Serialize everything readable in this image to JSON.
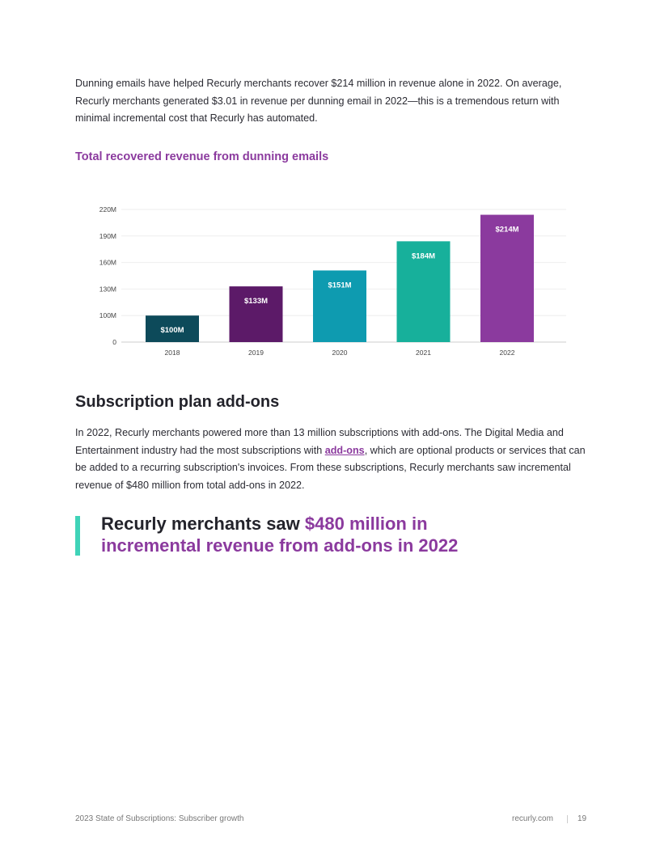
{
  "intro": "Dunning emails have helped Recurly merchants recover $214 million in revenue alone in 2022. On average, Recurly merchants generated $3.01 in revenue per dunning email in 2022—this is a tremendous return with minimal incremental cost that Recurly has automated.",
  "chart_data": {
    "type": "bar",
    "title": "Total recovered revenue from dunning emails",
    "categories": [
      "2018",
      "2019",
      "2020",
      "2021",
      "2022"
    ],
    "values": [
      100,
      133,
      151,
      184,
      214
    ],
    "value_labels": [
      "$100M",
      "$133M",
      "$151M",
      "$184M",
      "$214M"
    ],
    "colors": [
      "#0d4a5a",
      "#5c1a68",
      "#0e9bb0",
      "#17b09b",
      "#8b3a9e"
    ],
    "ylim": [
      0,
      220
    ],
    "yticks": [
      0,
      {
        "value": 100,
        "label": "100M"
      },
      {
        "value": 130,
        "label": "130M"
      },
      {
        "value": 160,
        "label": "160M"
      },
      {
        "value": 190,
        "label": "190M"
      },
      {
        "value": 220,
        "label": "220M"
      }
    ],
    "grid": true
  },
  "section": {
    "heading": "Subscription plan add-ons",
    "paragraph": {
      "before": "In 2022, Recurly merchants powered more than 13 million subscriptions with add-ons. The Digital Media and Entertainment industry had the most subscriptions with ",
      "link": "add-ons",
      "after": ", which are optional products or services that can be added to a recurring subscription's invoices. From these subscriptions, Recurly merchants saw incremental revenue of $480 million from total add-ons in 2022."
    }
  },
  "callout": {
    "text": "Recurly merchants saw ",
    "highlight": "$480 million in incremental revenue from add-ons in 2022"
  },
  "footer": {
    "left": "2023 State of Subscriptions: Subscriber growth",
    "site": "recurly.com",
    "page": "19"
  }
}
